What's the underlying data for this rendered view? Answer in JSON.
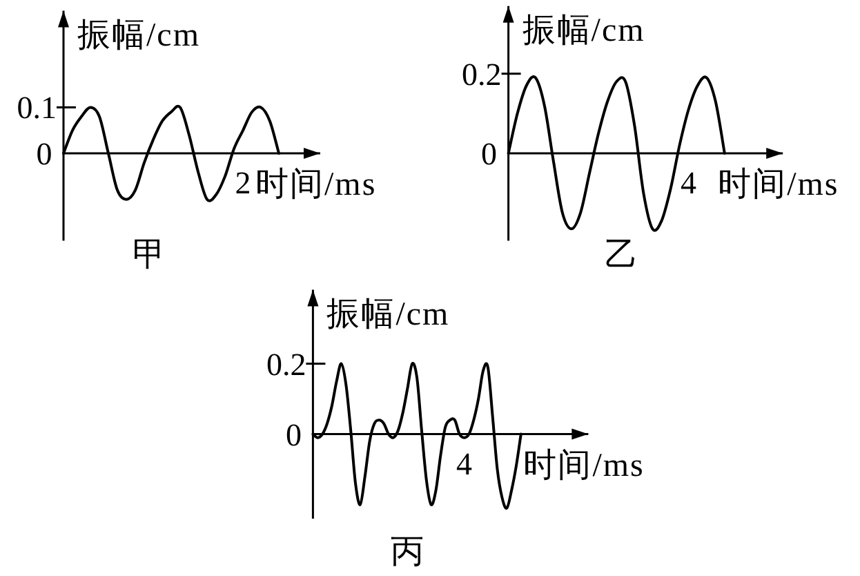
{
  "chart_data": [
    {
      "type": "line",
      "title": "甲",
      "xlabel": "时间/ms",
      "ylabel": "振幅/cm",
      "color": "#000000",
      "ylim": [
        -0.19,
        0.31
      ],
      "yticks": [
        {
          "value": 0,
          "label": "0"
        },
        {
          "value": 0.1,
          "label": "0.1"
        }
      ],
      "categories": [
        null,
        null,
        null,
        null,
        null,
        null,
        null,
        null,
        null,
        null,
        null,
        null,
        null,
        null,
        null,
        null,
        null,
        null,
        null,
        null,
        "2",
        null,
        null,
        null,
        null
      ],
      "values": [
        0,
        0.05,
        0.08,
        0.1,
        0.08,
        0,
        -0.08,
        -0.1,
        -0.08,
        -0.02,
        0.03,
        0.07,
        0.09,
        0.1,
        0.04,
        -0.04,
        -0.1,
        -0.09,
        -0.05,
        0.01,
        0.05,
        0.09,
        0.1,
        0.07,
        0
      ]
    },
    {
      "type": "line",
      "title": "乙",
      "xlabel": "时间/ms",
      "ylabel": "振幅/cm",
      "color": "#000000",
      "ylim": [
        -0.22,
        0.37
      ],
      "yticks": [
        {
          "value": 0,
          "label": "0"
        },
        {
          "value": 0.2,
          "label": "0.2"
        }
      ],
      "categories": [
        null,
        null,
        null,
        null,
        null,
        null,
        null,
        null,
        null,
        null,
        null,
        null,
        null,
        null,
        null,
        null,
        null,
        null,
        null,
        null,
        "4",
        null,
        null,
        null,
        null
      ],
      "values": [
        0,
        0.1,
        0.17,
        0.19,
        0.12,
        -0.02,
        -0.15,
        -0.19,
        -0.15,
        -0.05,
        0.05,
        0.13,
        0.18,
        0.18,
        0.07,
        -0.1,
        -0.19,
        -0.17,
        -0.09,
        0.02,
        0.11,
        0.17,
        0.19,
        0.13,
        0
      ]
    },
    {
      "type": "line",
      "title": "丙",
      "xlabel": "时间/ms",
      "ylabel": "振幅/cm",
      "color": "#000000",
      "ylim": [
        -0.24,
        0.41
      ],
      "yticks": [
        {
          "value": 0,
          "label": "0"
        },
        {
          "value": 0.2,
          "label": "0.2"
        }
      ],
      "categories": [
        null,
        null,
        null,
        null,
        null,
        null,
        null,
        null,
        null,
        null,
        null,
        null,
        null,
        null,
        null,
        null,
        null,
        null,
        null,
        null,
        null,
        null,
        null,
        null,
        null,
        null,
        null,
        null,
        null,
        null,
        null,
        null,
        "4",
        null,
        null,
        null,
        null,
        null,
        null,
        null,
        null,
        null,
        null,
        null,
        null
      ],
      "values": [
        0,
        -0.01,
        0,
        0.03,
        0.08,
        0.15,
        0.2,
        0.14,
        0.01,
        -0.14,
        -0.2,
        -0.12,
        -0.02,
        0.03,
        0.04,
        0.03,
        0,
        -0.01,
        0.01,
        0.06,
        0.13,
        0.2,
        0.16,
        0.01,
        -0.13,
        -0.2,
        -0.16,
        -0.06,
        0.02,
        0.04,
        0.04,
        0,
        -0.01,
        0,
        0.04,
        0.1,
        0.18,
        0.19,
        0.05,
        -0.1,
        -0.18,
        -0.21,
        -0.16,
        -0.09,
        0
      ]
    }
  ]
}
